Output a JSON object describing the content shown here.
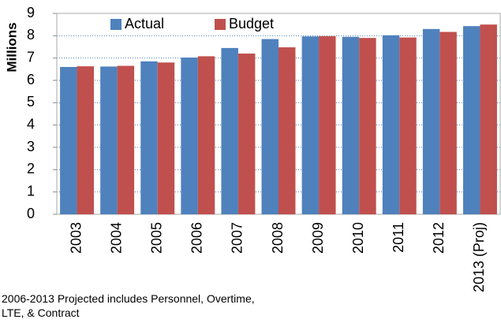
{
  "chart_data": {
    "type": "bar",
    "y_label": "Millions",
    "note": "2006-2013 Projected includes Personnel, Overtime, LTE, & Contract",
    "categories": [
      "2003",
      "2004",
      "2005",
      "2006",
      "2007",
      "2008",
      "2009",
      "2010",
      "2011",
      "2012",
      "2013 (Proj)"
    ],
    "series": [
      {
        "name": "Actual",
        "color": "#4f81bd",
        "values": [
          6.6,
          6.62,
          6.85,
          7.02,
          7.45,
          7.85,
          7.97,
          7.95,
          8.02,
          8.3,
          8.43
        ]
      },
      {
        "name": "Budget",
        "color": "#c0504d",
        "values": [
          6.63,
          6.65,
          6.8,
          7.08,
          7.2,
          7.48,
          7.98,
          7.9,
          7.92,
          8.17,
          8.5
        ]
      }
    ],
    "ylim": [
      0,
      9
    ],
    "yticks": [
      0,
      1,
      2,
      3,
      4,
      5,
      6,
      7,
      8,
      9
    ],
    "grid": true
  }
}
